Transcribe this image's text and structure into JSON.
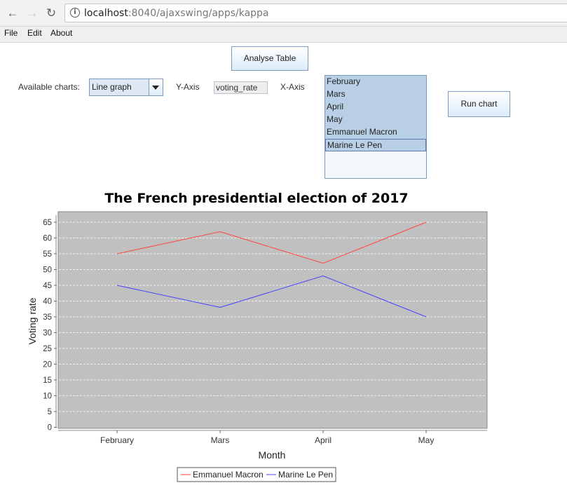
{
  "browser": {
    "url_host": "localhost",
    "url_path": ":8040/ajaxswing/apps/kappa"
  },
  "menu": [
    "File",
    "Edit",
    "About"
  ],
  "toolbar": {
    "analyse_label": "Analyse Table",
    "charts_label": "Available charts:",
    "chart_type": "Line graph",
    "yaxis_label": "Y-Axis",
    "yaxis_value": "voting_rate",
    "xaxis_label": "X-Axis",
    "xaxis_items": [
      "February",
      "Mars",
      "April",
      "May",
      "Emmanuel Macron",
      "Marine Le Pen"
    ],
    "run_label": "Run chart"
  },
  "chart_data": {
    "type": "line",
    "title": "The French presidential election of 2017",
    "xlabel": "Month",
    "ylabel": "Voting rate",
    "categories": [
      "February",
      "Mars",
      "April",
      "May"
    ],
    "series": [
      {
        "name": "Emmanuel Macron",
        "values": [
          55,
          62,
          52,
          65
        ],
        "color": "#ff4444"
      },
      {
        "name": "Marine Le Pen",
        "values": [
          45,
          38,
          48,
          35
        ],
        "color": "#4444ff"
      }
    ],
    "yticks": [
      "0",
      "5",
      "10",
      "15",
      "20",
      "25",
      "30",
      "35",
      "40",
      "45",
      "50",
      "55",
      "60",
      "65"
    ],
    "ylim": [
      0,
      68
    ],
    "grid": true,
    "plot_background": "#c0c0c0",
    "legend": "bottom"
  }
}
